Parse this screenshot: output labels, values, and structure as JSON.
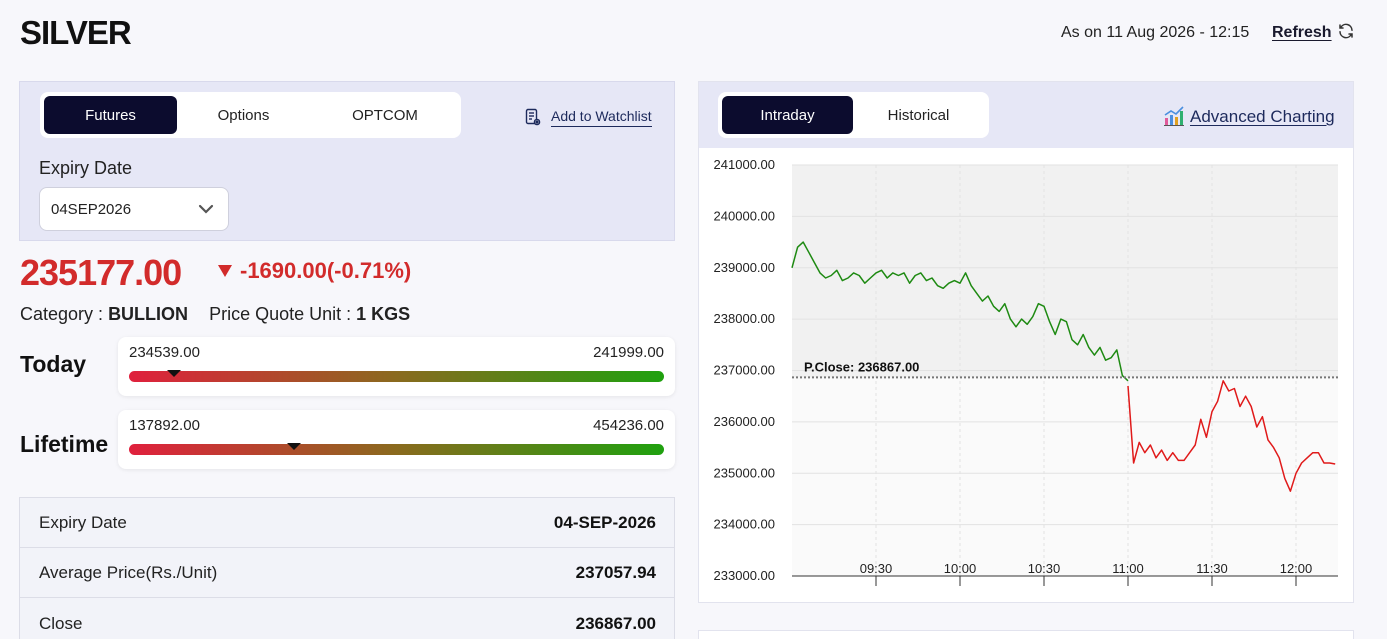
{
  "header": {
    "title": "SILVER",
    "as_on": "As on 11 Aug 2026 - 12:15",
    "refresh_label": "Refresh"
  },
  "instrument_tabs": [
    {
      "label": "Futures",
      "active": true
    },
    {
      "label": "Options",
      "active": false
    },
    {
      "label": "OPTCOM",
      "active": false
    }
  ],
  "watchlist_label": "Add to Watchlist",
  "expiry": {
    "label": "Expiry Date",
    "selected": "04SEP2026"
  },
  "quote": {
    "price": "235177.00",
    "change": "-1690.00(-0.71%)",
    "direction": "down",
    "category_label": "Category :",
    "category_value": "BULLION",
    "unit_label": "Price Quote Unit :",
    "unit_value": "1 KGS"
  },
  "ranges": [
    {
      "label": "Today",
      "low": "234539.00",
      "high": "241999.00",
      "marker_fraction": 0.085
    },
    {
      "label": "Lifetime",
      "low": "137892.00",
      "high": "454236.00",
      "marker_fraction": 0.308
    }
  ],
  "details": [
    {
      "label": "Expiry Date",
      "value": "04-SEP-2026"
    },
    {
      "label": "Average Price(Rs./Unit)",
      "value": "237057.94"
    },
    {
      "label": "Close",
      "value": "236867.00"
    }
  ],
  "chart_tabs": [
    {
      "label": "Intraday",
      "active": true
    },
    {
      "label": "Historical",
      "active": false
    }
  ],
  "advanced_charting_label": "Advanced Charting",
  "colors": {
    "up": "#1e8a12",
    "down": "#e01a1a",
    "accent_dark": "#0c0c2e",
    "price_red": "#d22b2b"
  },
  "chart_data": {
    "type": "line",
    "title": "",
    "xlabel": "",
    "ylabel": "",
    "ylim": [
      233000,
      241000
    ],
    "yticks": [
      "241000.00",
      "240000.00",
      "239000.00",
      "238000.00",
      "237000.00",
      "236000.00",
      "235000.00",
      "234000.00",
      "233000.00"
    ],
    "x_ticks": [
      "09:30",
      "10:00",
      "10:30",
      "11:00",
      "11:30",
      "12:00"
    ],
    "x_range": [
      "09:00",
      "12:15"
    ],
    "reference_line": {
      "label": "P.Close: 236867.00",
      "value": 236867
    },
    "background_split": {
      "shaded_below": false,
      "shaded_above_reference": true
    },
    "series": [
      {
        "color": "#1e8a12",
        "x": [
          "09:00",
          "09:02",
          "09:04",
          "09:06",
          "09:08",
          "09:10",
          "09:12",
          "09:14",
          "09:16",
          "09:18",
          "09:20",
          "09:22",
          "09:24",
          "09:26",
          "09:28",
          "09:30",
          "09:32",
          "09:34",
          "09:36",
          "09:38",
          "09:40",
          "09:42",
          "09:44",
          "09:46",
          "09:48",
          "09:50",
          "09:52",
          "09:54",
          "09:56",
          "09:58",
          "10:00",
          "10:02",
          "10:04",
          "10:06",
          "10:08",
          "10:10",
          "10:12",
          "10:14",
          "10:16",
          "10:18",
          "10:20",
          "10:22",
          "10:24",
          "10:26",
          "10:28",
          "10:30",
          "10:32",
          "10:34",
          "10:36",
          "10:38",
          "10:40",
          "10:42",
          "10:44",
          "10:46",
          "10:48",
          "10:50",
          "10:52",
          "10:54",
          "10:56",
          "10:58",
          "11:00"
        ],
        "values": [
          239000,
          239400,
          239500,
          239300,
          239100,
          238900,
          238800,
          238850,
          238950,
          238750,
          238800,
          238900,
          238850,
          238700,
          238800,
          238900,
          238950,
          238800,
          238900,
          238850,
          238900,
          238700,
          238850,
          238900,
          238750,
          238800,
          238650,
          238600,
          238700,
          238750,
          238700,
          238900,
          238650,
          238500,
          238350,
          238450,
          238250,
          238150,
          238300,
          238000,
          237850,
          238000,
          237900,
          238050,
          238300,
          238250,
          237950,
          237700,
          238000,
          237950,
          237600,
          237500,
          237700,
          237450,
          237300,
          237450,
          237200,
          237250,
          237400,
          236900,
          236800
        ]
      },
      {
        "color": "#e01a1a",
        "x": [
          "11:00",
          "11:02",
          "11:04",
          "11:06",
          "11:08",
          "11:10",
          "11:12",
          "11:14",
          "11:16",
          "11:18",
          "11:20",
          "11:22",
          "11:24",
          "11:26",
          "11:28",
          "11:30",
          "11:32",
          "11:34",
          "11:36",
          "11:38",
          "11:40",
          "11:42",
          "11:44",
          "11:46",
          "11:48",
          "11:50",
          "11:52",
          "11:54",
          "11:56",
          "11:58",
          "12:00",
          "12:02",
          "12:04",
          "12:06",
          "12:08",
          "12:10",
          "12:12",
          "12:14"
        ],
        "values": [
          236700,
          235200,
          235600,
          235400,
          235550,
          235300,
          235450,
          235250,
          235400,
          235250,
          235250,
          235400,
          235550,
          236050,
          235700,
          236200,
          236400,
          236800,
          236600,
          236650,
          236300,
          236500,
          236300,
          235900,
          236100,
          235650,
          235500,
          235300,
          234900,
          234650,
          235000,
          235200,
          235300,
          235400,
          235400,
          235200,
          235200,
          235180
        ]
      }
    ]
  }
}
